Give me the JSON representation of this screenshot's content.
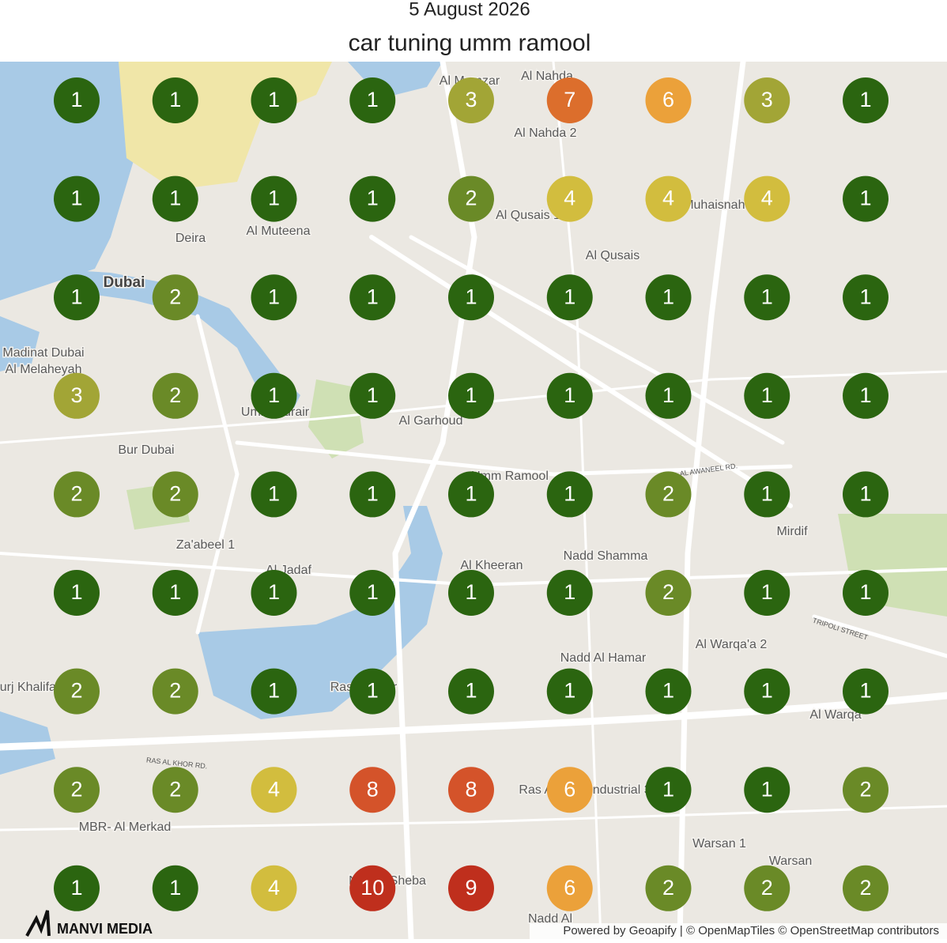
{
  "header": {
    "date": "5 August 2026",
    "title": "car tuning umm ramool"
  },
  "grid": {
    "rows": [
      {
        "values": [
          1,
          1,
          1,
          1,
          3,
          7,
          6,
          3,
          1
        ]
      },
      {
        "values": [
          1,
          1,
          1,
          1,
          2,
          4,
          4,
          4,
          1
        ]
      },
      {
        "values": [
          1,
          2,
          1,
          1,
          1,
          1,
          1,
          1,
          1
        ]
      },
      {
        "values": [
          3,
          2,
          1,
          1,
          1,
          1,
          1,
          1,
          1
        ]
      },
      {
        "values": [
          2,
          2,
          1,
          1,
          1,
          1,
          2,
          1,
          1
        ]
      },
      {
        "values": [
          1,
          1,
          1,
          1,
          1,
          1,
          2,
          1,
          1
        ]
      },
      {
        "values": [
          2,
          2,
          1,
          1,
          1,
          1,
          1,
          1,
          1
        ]
      },
      {
        "values": [
          2,
          2,
          4,
          8,
          8,
          6,
          1,
          1,
          2
        ]
      },
      {
        "values": [
          1,
          1,
          4,
          10,
          9,
          6,
          2,
          2,
          2
        ]
      }
    ],
    "colors": {
      "1": "#2b6510",
      "2": "#6a8a27",
      "3": "#a2a536",
      "4": "#d2bd3e",
      "6": "#eba13a",
      "7": "#dc6e2c",
      "8": "#d4532a",
      "9": "#bf2f1d",
      "10": "#bf2f1d"
    }
  },
  "map": {
    "labels": [
      "Deira",
      "Al Muteena",
      "Dubai",
      "Madinat Dubai",
      "Al Melaheyah",
      "Bur Dubai",
      "Umm Hurair",
      "Al Garhoud",
      "Umm Ramool",
      "Al Nahda 2",
      "Al Qusais 1",
      "Al Qusais",
      "Muhaisnah 4",
      "Mirdif",
      "Nadd Shamma",
      "Al Kheeran",
      "Za'abeel 1",
      "Al Jadaf",
      "Nadd Al Hamar",
      "Al Warqa'a 2",
      "Al Warqa",
      "Ras Al Khor",
      "Ras Al Khor Industrial 3",
      "Warsan 1",
      "Warsan",
      "MBR- Al Merkad",
      "Nad Al Sheba",
      "Nadd Al",
      "Burj Khalifa",
      "Al Nahda",
      "Al Mamzar"
    ],
    "roads": [
      "RAS AL KHOR RD.",
      "TRIPOLI STREET",
      "AL AWANEEL RD."
    ]
  },
  "footer": {
    "attribution": "Powered by Geoapify | © OpenMapTiles © OpenStreetMap contributors",
    "logo": "MANVI MEDIA"
  }
}
